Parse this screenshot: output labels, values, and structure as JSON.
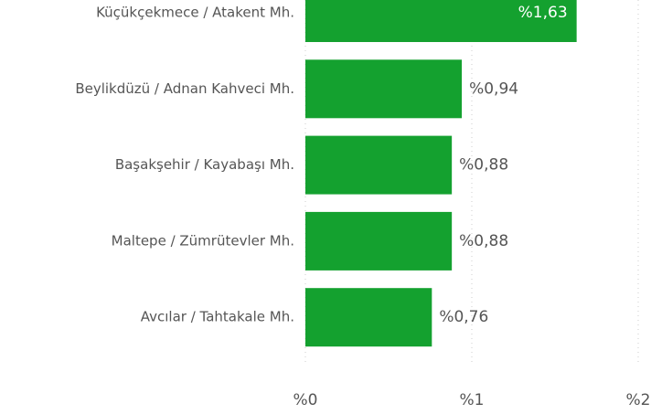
{
  "chart_data": {
    "type": "bar",
    "orientation": "horizontal",
    "categories": [
      "Küçükçekmece / Atakent Mh.",
      "Beylikdüzü / Adnan Kahveci Mh.",
      "Başakşehir / Kayabaşı Mh.",
      "Maltepe / Zümrütevler Mh.",
      "Avcılar / Tahtakale Mh."
    ],
    "values": [
      1.63,
      0.94,
      0.88,
      0.88,
      0.76
    ],
    "value_labels": [
      "%1,63",
      "%0,94",
      "%0,88",
      "%0,88",
      "%0,76"
    ],
    "color": "#14a12f",
    "xlim": [
      0,
      2
    ],
    "xticks": [
      {
        "value": 0,
        "label": "%0"
      },
      {
        "value": 1,
        "label": "%1"
      },
      {
        "value": 2,
        "label": "%2"
      }
    ],
    "grid": true
  }
}
